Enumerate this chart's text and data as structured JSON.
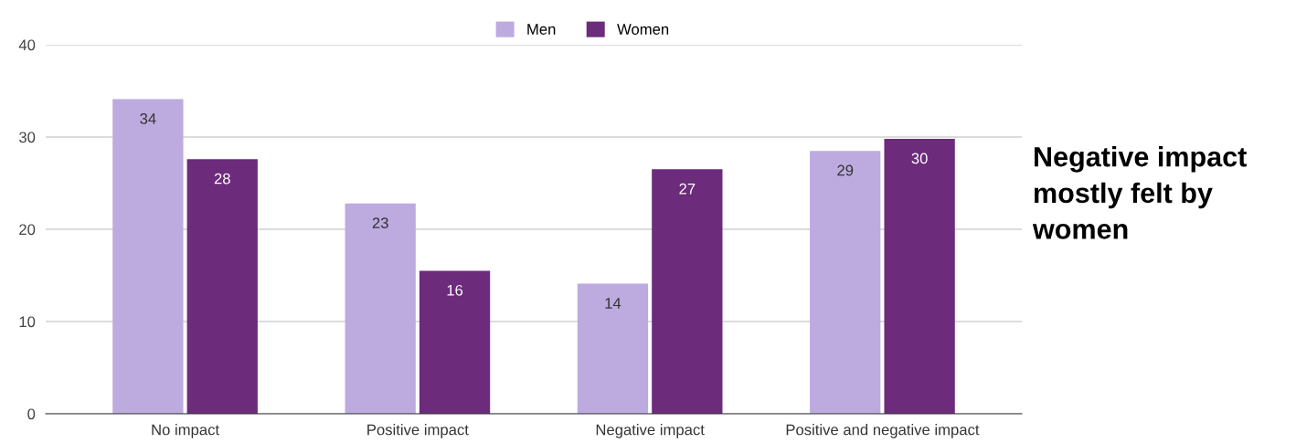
{
  "chart_data": {
    "type": "bar",
    "categories": [
      "No impact",
      "Positive impact",
      "Negative impact",
      "Positive and negative impact"
    ],
    "series": [
      {
        "name": "Men",
        "color": "#bdaadf",
        "values": [
          34.1,
          22.8,
          14.1,
          28.5
        ],
        "value_labels": [
          "34",
          "23",
          "14",
          "29"
        ]
      },
      {
        "name": "Women",
        "color": "#6c2b7b",
        "values": [
          27.6,
          15.5,
          26.5,
          29.8
        ],
        "value_labels": [
          "28",
          "16",
          "27",
          "30"
        ]
      }
    ],
    "ylim": [
      0,
      40
    ],
    "yticks": [
      0,
      10,
      20,
      30,
      40
    ],
    "grid": "y",
    "legend": "top",
    "annotations": [
      "Negative impact mostly felt by women"
    ]
  }
}
